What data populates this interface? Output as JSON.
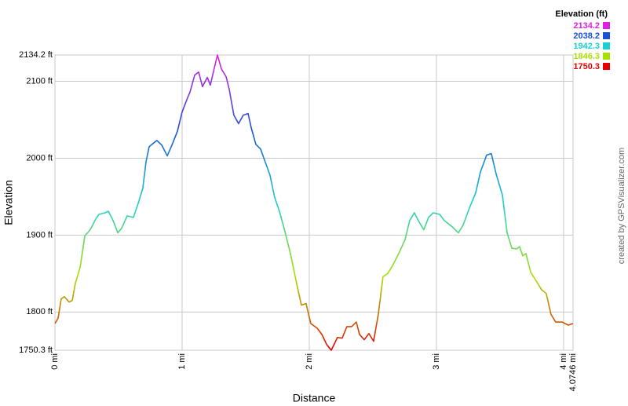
{
  "chart_data": {
    "type": "line",
    "x_label": "Distance",
    "y_label": "Elevation",
    "legend_title": "Elevation (ft)",
    "credit": "created by GPSVisualizer.com",
    "color_scale": [
      {
        "value": 2134.2,
        "color": "#e020e0"
      },
      {
        "value": 2038.2,
        "color": "#1a4fd8"
      },
      {
        "value": 1942.3,
        "color": "#18d0d0"
      },
      {
        "value": 1846.3,
        "color": "#a8e000"
      },
      {
        "value": 1750.3,
        "color": "#e80000"
      }
    ],
    "x": [
      0,
      0.025,
      0.049,
      0.074,
      0.111,
      0.136,
      0.16,
      0.198,
      0.235,
      0.278,
      0.321,
      0.346,
      0.395,
      0.42,
      0.457,
      0.494,
      0.525,
      0.568,
      0.617,
      0.654,
      0.691,
      0.716,
      0.741,
      0.778,
      0.802,
      0.84,
      0.883,
      0.92,
      0.963,
      1.0,
      1.037,
      1.062,
      1.099,
      1.13,
      1.16,
      1.198,
      1.222,
      1.253,
      1.278,
      1.309,
      1.346,
      1.37,
      1.407,
      1.444,
      1.481,
      1.519,
      1.543,
      1.58,
      1.617,
      1.654,
      1.691,
      1.728,
      1.765,
      1.802,
      1.852,
      1.901,
      1.938,
      1.975,
      2.012,
      2.062,
      2.099,
      2.136,
      2.173,
      2.222,
      2.259,
      2.296,
      2.333,
      2.37,
      2.395,
      2.432,
      2.469,
      2.506,
      2.543,
      2.58,
      2.617,
      2.654,
      2.704,
      2.753,
      2.79,
      2.827,
      2.864,
      2.901,
      2.938,
      2.975,
      3.025,
      3.062,
      3.123,
      3.173,
      3.21,
      3.259,
      3.309,
      3.346,
      3.395,
      3.432,
      3.469,
      3.519,
      3.556,
      3.593,
      3.63,
      3.654,
      3.679,
      3.704,
      3.741,
      3.79,
      3.827,
      3.864,
      3.901,
      3.938,
      3.988,
      4.037,
      4.0746
    ],
    "values": [
      1785,
      1792,
      1817,
      1820,
      1813,
      1815,
      1837,
      1858,
      1899,
      1907,
      1921,
      1927,
      1929,
      1931,
      1919,
      1903,
      1909,
      1925,
      1923,
      1941,
      1961,
      1995,
      2015,
      2020,
      2023,
      2017,
      2003,
      2017,
      2035,
      2060,
      2076,
      2086,
      2108,
      2112,
      2093,
      2105,
      2095,
      2117,
      2134.2,
      2116,
      2106,
      2090,
      2056,
      2045,
      2056,
      2058,
      2040,
      2018,
      2012,
      1995,
      1978,
      1949,
      1931,
      1909,
      1876,
      1837,
      1809,
      1811,
      1785,
      1779,
      1771,
      1758,
      1750.3,
      1767,
      1766,
      1781,
      1781,
      1787,
      1771,
      1764,
      1772,
      1762,
      1797,
      1846,
      1850,
      1860,
      1876,
      1894,
      1919,
      1929,
      1917,
      1907,
      1923,
      1929,
      1927,
      1919,
      1911,
      1903,
      1913,
      1935,
      1955,
      1982,
      2004,
      2006,
      1980,
      1952,
      1903,
      1883,
      1882,
      1885,
      1873,
      1876,
      1852,
      1839,
      1829,
      1824,
      1797,
      1787,
      1787,
      1783,
      1785
    ],
    "xlim": [
      0,
      4.0746
    ],
    "xticks": [
      {
        "value": 0,
        "label": "0 mi"
      },
      {
        "value": 1,
        "label": "1 mi"
      },
      {
        "value": 2,
        "label": "2 mi"
      },
      {
        "value": 3,
        "label": "3 mi"
      },
      {
        "value": 4,
        "label": "4 mi"
      },
      {
        "value": 4.0746,
        "label": "4.0746 mi"
      }
    ],
    "ylim": [
      1750.3,
      2134.2
    ],
    "yticks": [
      {
        "value": 1750.3,
        "label": "1750.3 ft"
      },
      {
        "value": 1800,
        "label": "1800 ft"
      },
      {
        "value": 1900,
        "label": "1900 ft"
      },
      {
        "value": 2000,
        "label": "2000 ft"
      },
      {
        "value": 2100,
        "label": "2100 ft"
      },
      {
        "value": 2134.2,
        "label": "2134.2 ft"
      }
    ],
    "grid": true
  }
}
